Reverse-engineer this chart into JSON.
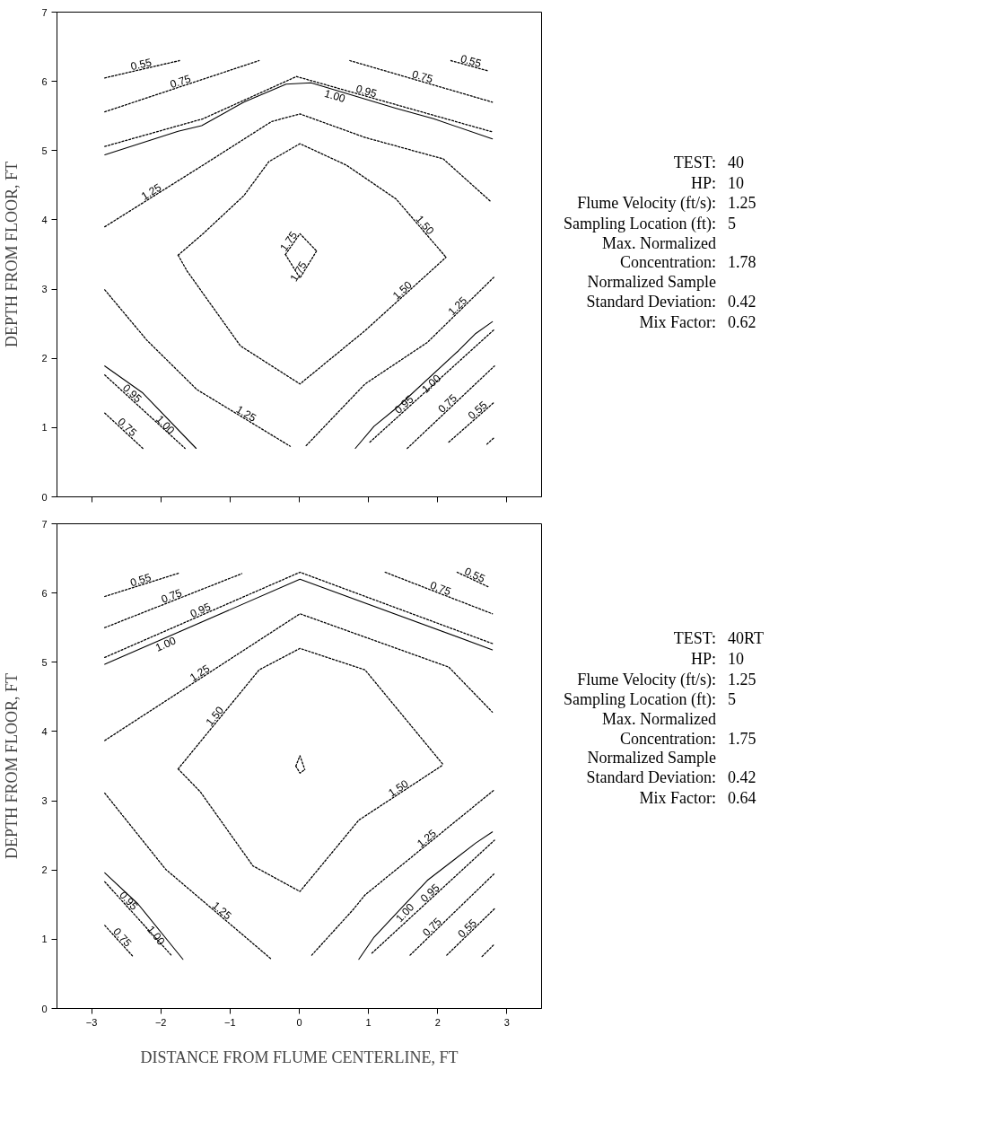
{
  "chart_data": [
    {
      "type": "line",
      "ylabel": "DEPTH FROM FLOOR, FT",
      "xlim": [
        -3.5,
        3.5
      ],
      "ylim": [
        0,
        7
      ],
      "xticks": [
        -3,
        -2,
        -1,
        0,
        1,
        2,
        3
      ],
      "yticks": [
        0,
        1,
        2,
        3,
        4,
        5,
        6,
        7
      ],
      "tick_labels": "y",
      "grid": false,
      "annotations": [
        "TEST: 40",
        "HP: 10",
        "Flume Velocity (ft/s): 1.25",
        "Sampling Location (ft): 5",
        "Max. Normalized\nConcentration: 1.78",
        "Normalized Sample\nStandard Deviation: 0.42",
        "Mix Factor: 0.62"
      ],
      "series": [
        {
          "name": "0.55",
          "color": "#000000",
          "line_style": "dotted",
          "x": [
            -2.81,
            -1.73
          ],
          "values": [
            6.05,
            6.3
          ]
        },
        {
          "name": "0.55",
          "color": "#000000",
          "line_style": "dotted",
          "x": [
            2.19,
            2.73
          ],
          "values": [
            6.3,
            6.15
          ]
        },
        {
          "name": "0.75",
          "color": "#000000",
          "line_style": "dotted",
          "x": [
            -2.81,
            -0.58
          ],
          "values": [
            5.56,
            6.3
          ]
        },
        {
          "name": "0.75",
          "color": "#000000",
          "line_style": "dotted",
          "x": [
            0.73,
            2.79
          ],
          "values": [
            6.3,
            5.7
          ]
        },
        {
          "name": "0.95",
          "color": "#000000",
          "line_style": "dotted",
          "x": [
            -2.81,
            -1.39,
            -0.04,
            1.94,
            2.79
          ],
          "values": [
            5.06,
            5.46,
            6.07,
            5.51,
            5.27
          ]
        },
        {
          "name": "1.00",
          "color": "#000000",
          "line_style": "solid",
          "x": [
            -2.81,
            -1.75,
            -1.41,
            -0.8,
            -0.19,
            0.17,
            1.4,
            1.94,
            2.79
          ],
          "values": [
            4.94,
            5.28,
            5.36,
            5.7,
            5.96,
            5.98,
            5.61,
            5.46,
            5.17
          ]
        },
        {
          "name": "1.25",
          "color": "#000000",
          "line_style": "dotted",
          "x": [
            -2.81,
            -1.39,
            -0.4,
            0.01,
            0.95,
            2.08,
            2.76
          ],
          "values": [
            3.9,
            4.79,
            5.42,
            5.53,
            5.19,
            4.88,
            4.27
          ]
        },
        {
          "name": "1.50",
          "color": "#000000",
          "line_style": "dotted",
          "x": [
            -1.75,
            -1.39,
            -0.8,
            -0.44,
            0.01,
            0.68,
            1.4,
            2.12
          ],
          "values": [
            3.49,
            3.8,
            4.35,
            4.84,
            5.1,
            4.79,
            4.3,
            3.46
          ]
        },
        {
          "name": "1.50",
          "color": "#000000",
          "line_style": "dotted",
          "x": [
            -1.75,
            -1.62,
            -0.85,
            0.01,
            0.95,
            2.12
          ],
          "values": [
            3.49,
            3.26,
            2.18,
            1.63,
            2.4,
            3.46
          ]
        },
        {
          "name": "1.75",
          "color": "#000000",
          "line_style": "dotted",
          "x": [
            -0.2,
            0.01,
            0.25
          ],
          "values": [
            3.5,
            3.8,
            3.55
          ]
        },
        {
          "name": "1.75",
          "color": "#000000",
          "line_style": "dotted",
          "x": [
            -0.2,
            0.01,
            0.25
          ],
          "values": [
            3.5,
            3.16,
            3.55
          ]
        },
        {
          "name": "1.25",
          "color": "#000000",
          "line_style": "dotted",
          "x": [
            -2.81,
            -2.2,
            -1.48,
            -0.13
          ],
          "values": [
            2.99,
            2.26,
            1.55,
            0.73
          ]
        },
        {
          "name": "1.25",
          "color": "#000000",
          "line_style": "dotted",
          "x": [
            0.1,
            0.95,
            1.85,
            2.82
          ],
          "values": [
            0.74,
            1.63,
            2.23,
            3.18
          ]
        },
        {
          "name": "1.00",
          "color": "#000000",
          "line_style": "solid",
          "x": [
            -2.81,
            -2.26,
            -1.49
          ],
          "values": [
            1.89,
            1.5,
            0.7
          ]
        },
        {
          "name": "0.95",
          "color": "#000000",
          "line_style": "dotted",
          "x": [
            -2.81,
            -1.65
          ],
          "values": [
            1.76,
            0.7
          ]
        },
        {
          "name": "0.75",
          "color": "#000000",
          "line_style": "dotted",
          "x": [
            -2.81,
            -2.26
          ],
          "values": [
            1.21,
            0.7
          ]
        },
        {
          "name": "1.00",
          "color": "#000000",
          "line_style": "solid",
          "x": [
            0.81,
            1.08,
            1.4,
            2.3,
            2.55,
            2.79
          ],
          "values": [
            0.7,
            1.02,
            1.28,
            2.11,
            2.36,
            2.53
          ]
        },
        {
          "name": "0.95",
          "color": "#000000",
          "line_style": "dotted",
          "x": [
            1.02,
            2.82
          ],
          "values": [
            0.79,
            2.42
          ]
        },
        {
          "name": "0.75",
          "color": "#000000",
          "line_style": "dotted",
          "x": [
            1.56,
            2.82
          ],
          "values": [
            0.7,
            1.89
          ]
        },
        {
          "name": "0.55",
          "color": "#000000",
          "line_style": "dotted",
          "x": [
            2.16,
            2.82
          ],
          "values": [
            0.79,
            1.37
          ]
        },
        {
          "color": "#000000",
          "line_style": "dotted",
          "x": [
            2.71,
            2.82
          ],
          "values": [
            0.76,
            0.86
          ]
        }
      ]
    },
    {
      "type": "line",
      "xlabel": "DISTANCE FROM FLUME CENTERLINE, FT",
      "ylabel": "DEPTH FROM FLOOR, FT",
      "xlim": [
        -3.5,
        3.5
      ],
      "ylim": [
        0,
        7
      ],
      "xticks": [
        -3,
        -2,
        -1,
        0,
        1,
        2,
        3
      ],
      "yticks": [
        0,
        1,
        2,
        3,
        4,
        5,
        6,
        7
      ],
      "grid": false,
      "annotations": [
        "TEST: 40RT",
        "HP: 10",
        "Flume Velocity (ft/s): 1.25",
        "Sampling Location (ft): 5",
        "Max. Normalized\nConcentration: 1.75",
        "Normalized Sample\nStandard Deviation: 0.42",
        "Mix Factor: 0.64"
      ],
      "series": [
        {
          "name": "0.55",
          "color": "#000000",
          "line_style": "dotted",
          "x": [
            -2.81,
            -1.73
          ],
          "values": [
            5.95,
            6.29
          ]
        },
        {
          "name": "0.55",
          "color": "#000000",
          "line_style": "dotted",
          "x": [
            2.28,
            2.73
          ],
          "values": [
            6.3,
            6.09
          ]
        },
        {
          "name": "0.75",
          "color": "#000000",
          "line_style": "dotted",
          "x": [
            -2.81,
            -0.83
          ],
          "values": [
            5.5,
            6.28
          ]
        },
        {
          "name": "0.75",
          "color": "#000000",
          "line_style": "dotted",
          "x": [
            1.24,
            2.79
          ],
          "values": [
            6.3,
            5.7
          ]
        },
        {
          "name": "0.95",
          "color": "#000000",
          "line_style": "dotted",
          "x": [
            -2.81,
            0.01,
            2.79
          ],
          "values": [
            5.07,
            6.3,
            5.27
          ]
        },
        {
          "name": "1.00",
          "color": "#000000",
          "line_style": "solid",
          "x": [
            -2.81,
            0.01,
            2.79
          ],
          "values": [
            4.97,
            6.2,
            5.18
          ]
        },
        {
          "name": "1.25",
          "color": "#000000",
          "line_style": "dotted",
          "x": [
            -2.81,
            0.01,
            2.16,
            2.79
          ],
          "values": [
            3.87,
            5.7,
            4.93,
            4.28
          ]
        },
        {
          "name": "1.50",
          "color": "#000000",
          "line_style": "dotted",
          "x": [
            -1.75,
            -0.58,
            0.01,
            0.95,
            2.08
          ],
          "values": [
            3.46,
            4.89,
            5.2,
            4.89,
            3.52
          ]
        },
        {
          "name": "1.50",
          "color": "#000000",
          "line_style": "dotted",
          "x": [
            -1.75,
            -1.43,
            -0.67,
            0.01,
            0.86,
            2.08
          ],
          "values": [
            3.46,
            3.13,
            2.06,
            1.69,
            2.72,
            3.52
          ]
        },
        {
          "color": "#000000",
          "line_style": "dotted",
          "x": [
            -0.05,
            0.01,
            0.08
          ],
          "values": [
            3.5,
            3.65,
            3.45
          ]
        },
        {
          "color": "#000000",
          "line_style": "dotted",
          "x": [
            -0.05,
            0.01,
            0.08
          ],
          "values": [
            3.5,
            3.4,
            3.45
          ]
        },
        {
          "name": "1.25",
          "color": "#000000",
          "line_style": "dotted",
          "x": [
            -2.81,
            -1.93,
            -0.4
          ],
          "values": [
            3.11,
            2.01,
            0.71
          ]
        },
        {
          "name": "1.25",
          "color": "#000000",
          "line_style": "dotted",
          "x": [
            0.18,
            0.78,
            0.95,
            2.82
          ],
          "values": [
            0.77,
            1.43,
            1.64,
            3.16
          ]
        },
        {
          "name": "1.00",
          "color": "#000000",
          "line_style": "solid",
          "x": [
            -2.81,
            -2.33,
            -1.68
          ],
          "values": [
            1.96,
            1.51,
            0.71
          ]
        },
        {
          "name": "0.95",
          "color": "#000000",
          "line_style": "dotted",
          "x": [
            -2.81,
            -1.84
          ],
          "values": [
            1.83,
            0.76
          ]
        },
        {
          "name": "0.75",
          "color": "#000000",
          "line_style": "dotted",
          "x": [
            -2.81,
            -2.41
          ],
          "values": [
            1.2,
            0.76
          ]
        },
        {
          "name": "1.00",
          "color": "#000000",
          "line_style": "solid",
          "x": [
            0.86,
            1.08,
            1.85,
            2.55,
            2.79
          ],
          "values": [
            0.71,
            1.03,
            1.85,
            2.39,
            2.55
          ]
        },
        {
          "name": "0.95",
          "color": "#000000",
          "line_style": "dotted",
          "x": [
            1.05,
            2.82
          ],
          "values": [
            0.8,
            2.43
          ]
        },
        {
          "name": "0.75",
          "color": "#000000",
          "line_style": "dotted",
          "x": [
            1.6,
            2.82
          ],
          "values": [
            0.77,
            1.95
          ]
        },
        {
          "name": "0.55",
          "color": "#000000",
          "line_style": "dotted",
          "x": [
            2.13,
            2.82
          ],
          "values": [
            0.77,
            1.44
          ]
        },
        {
          "color": "#000000",
          "line_style": "dotted",
          "x": [
            2.64,
            2.82
          ],
          "values": [
            0.75,
            0.93
          ]
        }
      ]
    }
  ]
}
